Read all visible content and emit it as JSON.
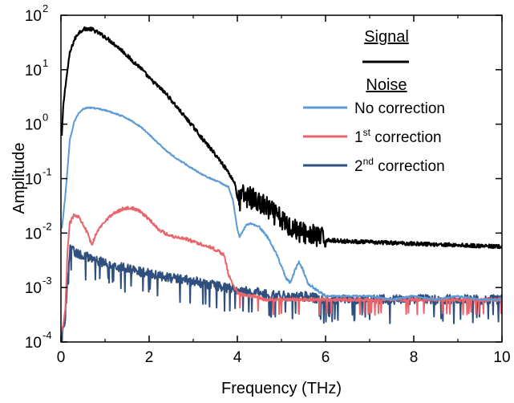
{
  "chart_data": {
    "type": "line",
    "xlabel": "Frequency (THz)",
    "ylabel": "Amplitude",
    "xlim": [
      0,
      10
    ],
    "ylim": [
      0.0001,
      100
    ],
    "yscale": "log",
    "x_ticks": [
      0,
      2,
      4,
      6,
      8,
      10
    ],
    "x_tick_labels": [
      "0",
      "2",
      "4",
      "6",
      "8",
      "10"
    ],
    "y_ticks": [
      0.0001,
      0.001,
      0.01,
      0.1,
      1,
      10,
      100
    ],
    "y_tick_labels": [
      {
        "base": "10",
        "exp": "-4"
      },
      {
        "base": "10",
        "exp": "-3"
      },
      {
        "base": "10",
        "exp": "-2"
      },
      {
        "base": "10",
        "exp": "-1"
      },
      {
        "base": "10",
        "exp": "0"
      },
      {
        "base": "10",
        "exp": "1"
      },
      {
        "base": "10",
        "exp": "2"
      }
    ],
    "grid": false,
    "legend_position": "top-right",
    "legend": {
      "signal_heading": "Signal",
      "noise_heading": "Noise",
      "entries": [
        {
          "series": 1,
          "text": "No correction",
          "sup": "",
          "suffix": ""
        },
        {
          "series": 2,
          "text": "1",
          "sup": "st",
          "suffix": " correction"
        },
        {
          "series": 3,
          "text": "2",
          "sup": "nd",
          "suffix": " correction"
        }
      ]
    },
    "series": [
      {
        "color": "#000000",
        "noise": 0.035,
        "x": [
          0.02,
          0.05,
          0.1,
          0.15,
          0.2,
          0.3,
          0.4,
          0.5,
          0.6,
          0.7,
          0.8,
          1.0,
          1.2,
          1.4,
          1.6,
          1.8,
          2.0,
          2.2,
          2.4,
          2.6,
          2.8,
          3.0,
          3.2,
          3.4,
          3.6,
          3.8,
          3.95,
          4.0,
          4.05,
          4.1,
          4.3,
          4.5,
          4.7,
          4.9,
          5.1,
          5.3,
          5.5,
          5.7,
          5.9,
          6.0,
          6.3,
          6.6,
          7.0,
          7.5,
          8.0,
          8.5,
          9.0,
          9.5,
          10.0
        ],
        "y": [
          0.6,
          2,
          5,
          10,
          20,
          35,
          48,
          55,
          57,
          55,
          50,
          40,
          30,
          22,
          15,
          11,
          7,
          5,
          3.5,
          2.2,
          1.4,
          0.9,
          0.55,
          0.35,
          0.22,
          0.13,
          0.08,
          0.045,
          0.035,
          0.05,
          0.045,
          0.035,
          0.028,
          0.02,
          0.015,
          0.012,
          0.01,
          0.009,
          0.008,
          0.0075,
          0.0072,
          0.007,
          0.0068,
          0.0066,
          0.0064,
          0.0062,
          0.006,
          0.0058,
          0.0056
        ]
      },
      {
        "name": "No correction",
        "color": "#5b9bd5",
        "noise": 0.012,
        "x": [
          0.02,
          0.05,
          0.1,
          0.15,
          0.2,
          0.3,
          0.4,
          0.5,
          0.6,
          0.7,
          0.8,
          1.0,
          1.2,
          1.4,
          1.6,
          1.8,
          2.0,
          2.2,
          2.4,
          2.6,
          2.8,
          3.0,
          3.2,
          3.4,
          3.6,
          3.8,
          3.9,
          4.0,
          4.05,
          4.1,
          4.2,
          4.3,
          4.5,
          4.7,
          4.9,
          5.1,
          5.2,
          5.3,
          5.4,
          5.5,
          5.6,
          5.8,
          6.0,
          6.3,
          6.6,
          7.0,
          7.5,
          8.0,
          8.5,
          9.0,
          9.5,
          10.0
        ],
        "y": [
          0.012,
          0.02,
          0.05,
          0.15,
          0.5,
          1.1,
          1.6,
          1.9,
          2.0,
          2.0,
          1.95,
          1.8,
          1.6,
          1.4,
          1.15,
          0.9,
          0.65,
          0.45,
          0.32,
          0.24,
          0.19,
          0.15,
          0.12,
          0.1,
          0.085,
          0.07,
          0.04,
          0.012,
          0.0085,
          0.01,
          0.014,
          0.015,
          0.013,
          0.008,
          0.004,
          0.0015,
          0.0012,
          0.002,
          0.003,
          0.002,
          0.0012,
          0.0009,
          0.0007,
          0.0007,
          0.0007,
          0.0007,
          0.0006,
          0.0007,
          0.0006,
          0.0007,
          0.0006,
          0.0006
        ]
      },
      {
        "name": "1st correction",
        "color": "#e8656c",
        "noise": 0.03,
        "x": [
          0.02,
          0.05,
          0.1,
          0.15,
          0.2,
          0.3,
          0.4,
          0.5,
          0.6,
          0.7,
          0.8,
          1.0,
          1.2,
          1.4,
          1.6,
          1.8,
          2.0,
          2.2,
          2.4,
          2.6,
          2.8,
          3.0,
          3.2,
          3.4,
          3.6,
          3.7,
          3.8,
          4.0,
          4.2,
          4.4,
          4.6,
          5.0,
          5.5,
          6.0,
          6.5,
          7.0,
          7.5,
          8.0,
          8.5,
          9.0,
          9.5,
          10.0
        ],
        "y": [
          0.00015,
          0.0002,
          0.0004,
          0.005,
          0.015,
          0.022,
          0.02,
          0.015,
          0.01,
          0.006,
          0.01,
          0.017,
          0.023,
          0.028,
          0.029,
          0.025,
          0.018,
          0.012,
          0.0095,
          0.0085,
          0.008,
          0.007,
          0.0062,
          0.0055,
          0.0045,
          0.004,
          0.0017,
          0.0008,
          0.0007,
          0.0007,
          0.0006,
          0.0006,
          0.0006,
          0.0006,
          0.0006,
          0.0006,
          0.0006,
          0.0006,
          0.0006,
          0.0006,
          0.0006,
          0.0006
        ]
      },
      {
        "name": "2nd correction",
        "color": "#2f4f7f",
        "noise": 0.09,
        "x": [
          0.02,
          0.05,
          0.1,
          0.15,
          0.2,
          0.3,
          0.5,
          0.7,
          1.0,
          1.3,
          1.6,
          2.0,
          2.5,
          3.0,
          3.5,
          4.0,
          4.5,
          5.0,
          5.5,
          6.0,
          6.5,
          7.0,
          7.5,
          8.0,
          8.5,
          9.0,
          9.5,
          10.0
        ],
        "y": [
          0.00013,
          0.00016,
          0.0003,
          0.0015,
          0.005,
          0.0045,
          0.004,
          0.0033,
          0.0028,
          0.0024,
          0.0021,
          0.0018,
          0.0015,
          0.0013,
          0.0011,
          0.0009,
          0.0008,
          0.0007,
          0.0007,
          0.0006,
          0.0006,
          0.0006,
          0.0006,
          0.0006,
          0.0006,
          0.0006,
          0.0006,
          0.0006
        ]
      }
    ]
  }
}
